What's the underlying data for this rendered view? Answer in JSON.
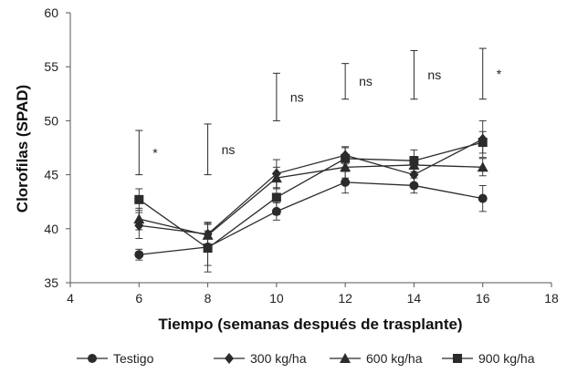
{
  "chart_data": {
    "type": "line",
    "title": "",
    "xlabel": "Tiempo (semanas después de trasplante)",
    "ylabel": "Clorofilas (SPAD)",
    "xlim": [
      4,
      18
    ],
    "ylim": [
      35,
      60
    ],
    "xticks": [
      4,
      6,
      8,
      10,
      12,
      14,
      16,
      18
    ],
    "yticks": [
      35,
      40,
      45,
      50,
      55,
      60
    ],
    "grid": false,
    "legend_position": "bottom",
    "line_color": "#2b2b2b",
    "x": [
      6,
      8,
      10,
      12,
      14,
      16
    ],
    "series": [
      {
        "name": "Testigo",
        "marker": "circle",
        "values": [
          37.6,
          38.3,
          41.6,
          44.3,
          44.0,
          42.8
        ],
        "errors": [
          0.5,
          2.3,
          0.8,
          1.0,
          0.7,
          1.2
        ]
      },
      {
        "name": "300 kg/ha",
        "marker": "diamond",
        "values": [
          40.3,
          39.5,
          45.1,
          46.8,
          45.0,
          48.3
        ],
        "errors": [
          1.2,
          1.0,
          1.3,
          0.8,
          1.0,
          1.7
        ]
      },
      {
        "name": "600 kg/ha",
        "marker": "triangle",
        "values": [
          40.9,
          39.4,
          44.7,
          45.7,
          45.9,
          45.7
        ],
        "errors": [
          1.0,
          1.0,
          1.0,
          1.0,
          0.8,
          0.8
        ]
      },
      {
        "name": "900 kg/ha",
        "marker": "square",
        "values": [
          42.7,
          38.2,
          42.9,
          46.5,
          46.3,
          48.0
        ],
        "errors": [
          1.0,
          1.6,
          1.6,
          1.0,
          1.0,
          1.0
        ]
      }
    ],
    "significance": [
      {
        "x": 6,
        "low": 45.0,
        "high": 49.1,
        "label": "*"
      },
      {
        "x": 8,
        "low": 45.0,
        "high": 49.7,
        "label": "ns"
      },
      {
        "x": 10,
        "low": 50.0,
        "high": 54.4,
        "label": "ns"
      },
      {
        "x": 12,
        "low": 52.0,
        "high": 55.3,
        "label": "ns"
      },
      {
        "x": 14,
        "low": 52.0,
        "high": 56.5,
        "label": "ns"
      },
      {
        "x": 16,
        "low": 52.0,
        "high": 56.7,
        "label": "*"
      }
    ]
  }
}
